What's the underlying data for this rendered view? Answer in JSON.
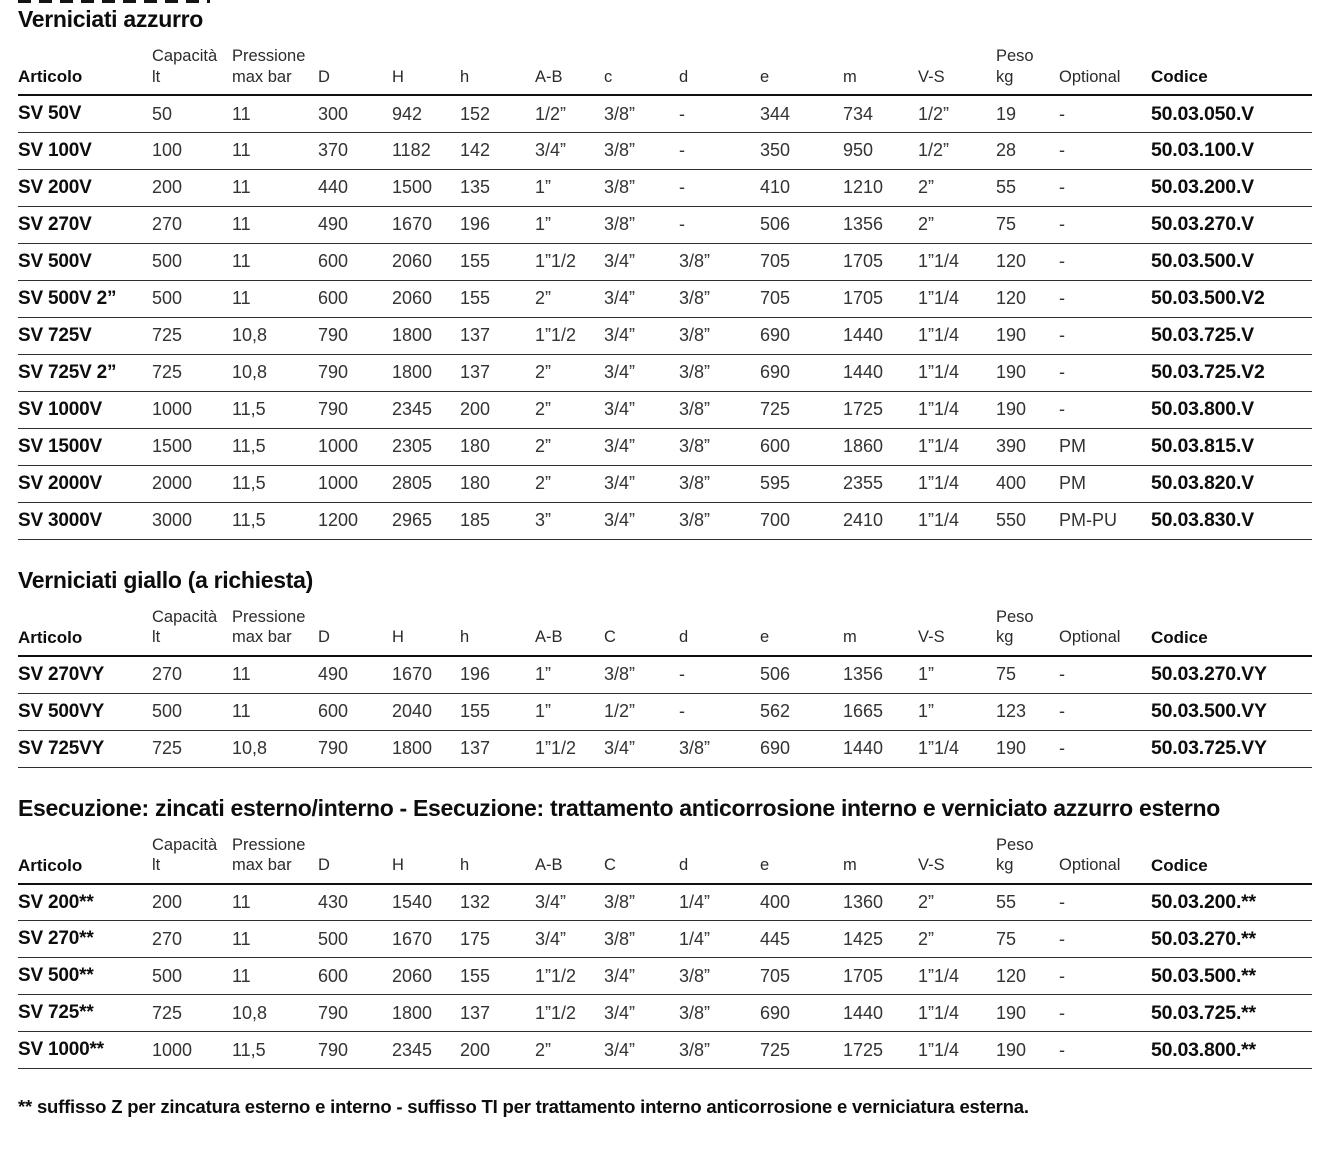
{
  "footnote": "** suffisso Z per zincatura esterno e interno - suffisso TI per trattamento interno anticorrosione e verniciatura esterna.",
  "tables": [
    {
      "title": "Verniciati azzurro",
      "headers": [
        "Articolo",
        "Capacità\nlt",
        "Pressione\nmax bar",
        "D",
        "H",
        "h",
        "A-B",
        "c",
        "d",
        "e",
        "m",
        "V-S",
        "Peso\nkg",
        "Optional",
        "Codice"
      ],
      "rows": [
        [
          "SV 50V",
          "50",
          "11",
          "300",
          "942",
          "152",
          "1/2”",
          "3/8”",
          "-",
          "344",
          "734",
          "1/2”",
          "19",
          "-",
          "50.03.050.V"
        ],
        [
          "SV 100V",
          "100",
          "11",
          "370",
          "1182",
          "142",
          "3/4”",
          "3/8”",
          "-",
          "350",
          "950",
          "1/2”",
          "28",
          "-",
          "50.03.100.V"
        ],
        [
          "SV 200V",
          "200",
          "11",
          "440",
          "1500",
          "135",
          "1”",
          "3/8”",
          "-",
          "410",
          "1210",
          "2”",
          "55",
          "-",
          "50.03.200.V"
        ],
        [
          "SV 270V",
          "270",
          "11",
          "490",
          "1670",
          "196",
          "1”",
          "3/8”",
          "-",
          "506",
          "1356",
          "2”",
          "75",
          "-",
          "50.03.270.V"
        ],
        [
          "SV 500V",
          "500",
          "11",
          "600",
          "2060",
          "155",
          "1”1/2",
          "3/4”",
          "3/8”",
          "705",
          "1705",
          "1”1/4",
          "120",
          "-",
          "50.03.500.V"
        ],
        [
          "SV 500V 2”",
          "500",
          "11",
          "600",
          "2060",
          "155",
          "2”",
          "3/4”",
          "3/8”",
          "705",
          "1705",
          "1”1/4",
          "120",
          "-",
          "50.03.500.V2"
        ],
        [
          "SV 725V",
          "725",
          "10,8",
          "790",
          "1800",
          "137",
          "1”1/2",
          "3/4”",
          "3/8”",
          "690",
          "1440",
          "1”1/4",
          "190",
          "-",
          "50.03.725.V"
        ],
        [
          "SV 725V 2”",
          "725",
          "10,8",
          "790",
          "1800",
          "137",
          "2”",
          "3/4”",
          "3/8”",
          "690",
          "1440",
          "1”1/4",
          "190",
          "-",
          "50.03.725.V2"
        ],
        [
          "SV 1000V",
          "1000",
          "11,5",
          "790",
          "2345",
          "200",
          "2”",
          "3/4”",
          "3/8”",
          "725",
          "1725",
          "1”1/4",
          "190",
          "-",
          "50.03.800.V"
        ],
        [
          "SV 1500V",
          "1500",
          "11,5",
          "1000",
          "2305",
          "180",
          "2”",
          "3/4”",
          "3/8”",
          "600",
          "1860",
          "1”1/4",
          "390",
          "PM",
          "50.03.815.V"
        ],
        [
          "SV 2000V",
          "2000",
          "11,5",
          "1000",
          "2805",
          "180",
          "2”",
          "3/4”",
          "3/8”",
          "595",
          "2355",
          "1”1/4",
          "400",
          "PM",
          "50.03.820.V"
        ],
        [
          "SV 3000V",
          "3000",
          "11,5",
          "1200",
          "2965",
          "185",
          "3”",
          "3/4”",
          "3/8”",
          "700",
          "2410",
          "1”1/4",
          "550",
          "PM-PU",
          "50.03.830.V"
        ]
      ]
    },
    {
      "title": "Verniciati giallo (a richiesta)",
      "headers": [
        "Articolo",
        "Capacità\nlt",
        "Pressione\nmax bar",
        "D",
        "H",
        "h",
        "A-B",
        "C",
        "d",
        "e",
        "m",
        "V-S",
        "Peso\nkg",
        "Optional",
        "Codice"
      ],
      "rows": [
        [
          "SV 270VY",
          "270",
          "11",
          "490",
          "1670",
          "196",
          "1”",
          "3/8”",
          "-",
          "506",
          "1356",
          "1”",
          "75",
          "-",
          "50.03.270.VY"
        ],
        [
          "SV 500VY",
          "500",
          "11",
          "600",
          "2040",
          "155",
          "1”",
          "1/2”",
          "-",
          "562",
          "1665",
          "1”",
          "123",
          "-",
          "50.03.500.VY"
        ],
        [
          "SV 725VY",
          "725",
          "10,8",
          "790",
          "1800",
          "137",
          "1”1/2",
          "3/4”",
          "3/8”",
          "690",
          "1440",
          "1”1/4",
          "190",
          "-",
          "50.03.725.VY"
        ]
      ]
    },
    {
      "title": "Esecuzione: zincati esterno/interno - Esecuzione: trattamento anticorrosione interno e verniciato azzurro esterno",
      "headers": [
        "Articolo",
        "Capacità\nlt",
        "Pressione\nmax bar",
        "D",
        "H",
        "h",
        "A-B",
        "C",
        "d",
        "e",
        "m",
        "V-S",
        "Peso\nkg",
        "Optional",
        "Codice"
      ],
      "rows": [
        [
          "SV 200**",
          "200",
          "11",
          "430",
          "1540",
          "132",
          "3/4”",
          "3/8”",
          "1/4”",
          "400",
          "1360",
          "2”",
          "55",
          "-",
          "50.03.200.**"
        ],
        [
          "SV 270**",
          "270",
          "11",
          "500",
          "1670",
          "175",
          "3/4”",
          "3/8”",
          "1/4”",
          "445",
          "1425",
          "2”",
          "75",
          "-",
          "50.03.270.**"
        ],
        [
          "SV 500**",
          "500",
          "11",
          "600",
          "2060",
          "155",
          "1”1/2",
          "3/4”",
          "3/8”",
          "705",
          "1705",
          "1”1/4",
          "120",
          "-",
          "50.03.500.**"
        ],
        [
          "SV 725**",
          "725",
          "10,8",
          "790",
          "1800",
          "137",
          "1”1/2",
          "3/4”",
          "3/8”",
          "690",
          "1440",
          "1”1/4",
          "190",
          "-",
          "50.03.725.**"
        ],
        [
          "SV 1000**",
          "1000",
          "11,5",
          "790",
          "2345",
          "200",
          "2”",
          "3/4”",
          "3/8”",
          "725",
          "1725",
          "1”1/4",
          "190",
          "-",
          "50.03.800.**"
        ]
      ]
    }
  ]
}
